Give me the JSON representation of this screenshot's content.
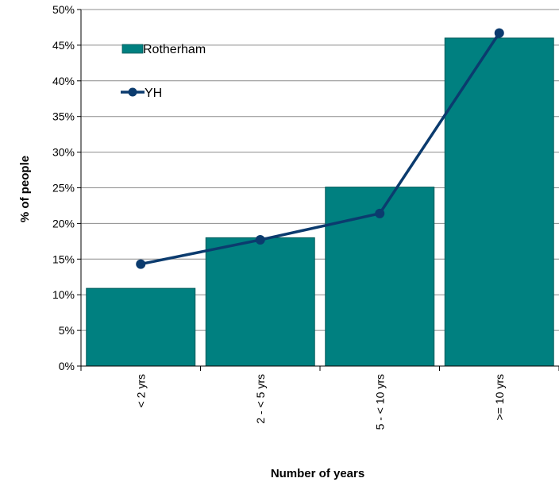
{
  "chart_data": {
    "type": "bar",
    "categories": [
      "< 2 yrs",
      "2 - < 5 yrs",
      "5 - < 10 yrs",
      ">= 10 yrs"
    ],
    "series": [
      {
        "name": "Rotherham",
        "type": "bar",
        "values": [
          10.9,
          18.0,
          25.1,
          46.0
        ],
        "color": "#008080"
      },
      {
        "name": "YH",
        "type": "line",
        "values": [
          14.3,
          17.7,
          21.4,
          46.7
        ],
        "color": "#0B3B6E"
      }
    ],
    "xlabel": "Number of years",
    "ylabel": "% of people",
    "ylim": [
      0,
      50
    ],
    "yticks": [
      "0%",
      "5%",
      "10%",
      "15%",
      "20%",
      "25%",
      "30%",
      "35%",
      "40%",
      "45%",
      "50%"
    ],
    "grid": true,
    "legend_position": "top-left"
  }
}
